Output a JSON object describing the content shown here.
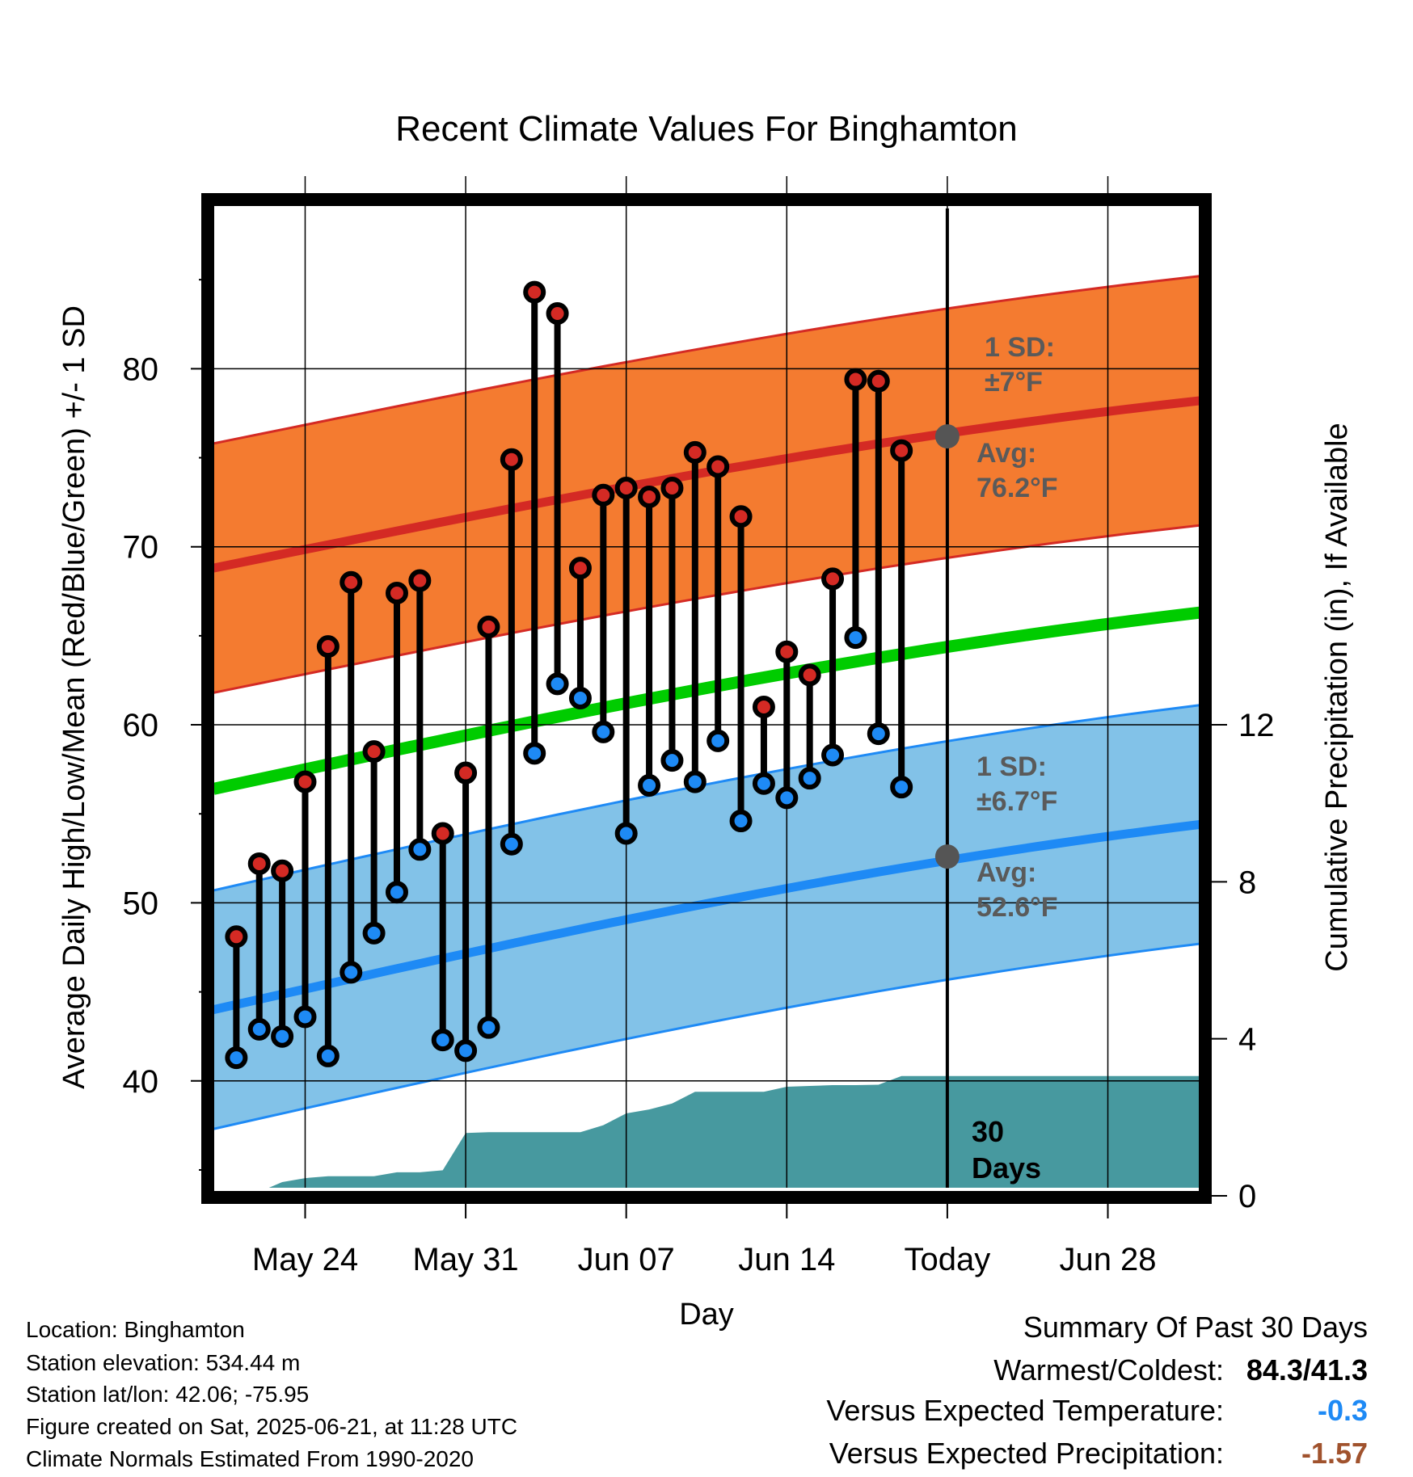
{
  "chart_data": {
    "type": "line",
    "title": "Recent Climate Values For Binghamton",
    "xlabel": "Day",
    "ylabel": "Average Daily High/Low/Mean (Red/Blue/Green) +/- 1 SD",
    "y2label": "Cumulative Precipitation (in), If Available",
    "x_range": [
      "2025-05-20",
      "2025-07-02"
    ],
    "ylim": [
      34,
      89
    ],
    "y2lim": [
      0,
      12
    ],
    "y_ticks": [
      40,
      50,
      60,
      70,
      80
    ],
    "y2_ticks": [
      0,
      4,
      8,
      12
    ],
    "x_ticks": [
      {
        "date": "2025-05-24",
        "label": "May 24"
      },
      {
        "date": "2025-05-31",
        "label": "May 31"
      },
      {
        "date": "2025-06-07",
        "label": "Jun 07"
      },
      {
        "date": "2025-06-14",
        "label": "Jun 14"
      },
      {
        "date": "2025-06-21",
        "label": "Today"
      },
      {
        "date": "2025-06-28",
        "label": "Jun 28"
      }
    ],
    "today": "2025-06-21",
    "normal_high": {
      "start": "2025-05-20",
      "end": "2025-07-02",
      "mean": [
        68.8,
        78.2
      ],
      "sd": 7.0
    },
    "normal_low": {
      "start": "2025-05-20",
      "end": "2025-07-02",
      "mean": [
        44.0,
        54.4
      ],
      "sd": 6.7
    },
    "normal_mean": {
      "start": "2025-05-20",
      "end": "2025-07-02",
      "values": [
        56.4,
        66.3
      ]
    },
    "daily_high_low": {
      "start": "2025-05-21",
      "high": [
        48.1,
        52.2,
        51.8,
        56.8,
        64.4,
        68.0,
        58.5,
        67.4,
        68.1,
        53.9,
        57.3,
        65.5,
        74.9,
        84.3,
        83.1,
        68.8,
        72.9,
        73.3,
        72.8,
        73.3,
        75.3,
        74.5,
        71.7,
        61.0,
        64.1,
        62.8,
        68.2,
        79.4,
        79.3,
        75.4
      ],
      "low": [
        41.3,
        42.9,
        42.5,
        43.6,
        41.4,
        46.1,
        48.3,
        50.6,
        53.0,
        42.3,
        41.7,
        43.0,
        53.3,
        58.4,
        62.3,
        61.5,
        59.6,
        53.9,
        56.6,
        58.0,
        56.8,
        59.1,
        54.6,
        56.7,
        55.9,
        57.0,
        58.3,
        64.9,
        59.5,
        56.5
      ]
    },
    "precipitation": {
      "dates": [
        "2025-05-21",
        "2025-05-22",
        "2025-05-23",
        "2025-05-24",
        "2025-05-25",
        "2025-05-26",
        "2025-05-27",
        "2025-05-28",
        "2025-05-29",
        "2025-05-30",
        "2025-05-31",
        "2025-06-01",
        "2025-06-02",
        "2025-06-03",
        "2025-06-04",
        "2025-06-05",
        "2025-06-06",
        "2025-06-07",
        "2025-06-08",
        "2025-06-09",
        "2025-06-10",
        "2025-06-11",
        "2025-06-12",
        "2025-06-13",
        "2025-06-14",
        "2025-06-15",
        "2025-06-16",
        "2025-06-17",
        "2025-06-18",
        "2025-06-19",
        "2025-07-02"
      ],
      "cumulative": [
        0.0,
        0.1,
        0.35,
        0.45,
        0.5,
        0.5,
        0.5,
        0.6,
        0.6,
        0.65,
        1.6,
        1.62,
        1.62,
        1.62,
        1.62,
        1.62,
        1.8,
        2.1,
        2.2,
        2.35,
        2.65,
        2.65,
        2.65,
        2.65,
        2.78,
        2.8,
        2.82,
        2.82,
        2.83,
        3.05,
        3.05
      ]
    },
    "annotations": {
      "high_sd": {
        "label": "1 SD:",
        "value": "±7°F"
      },
      "high_avg": {
        "label": "Avg:",
        "value": "76.2°F",
        "value_f": 76.2
      },
      "low_sd": {
        "label": "1 SD:",
        "value": "±6.7°F"
      },
      "low_avg": {
        "label": "Avg:",
        "value": "52.6°F",
        "value_f": 52.6
      },
      "period": {
        "line1": "30",
        "line2": "Days"
      }
    },
    "colors": {
      "high_band": "#f47b30",
      "high_line": "#d42a24",
      "low_band": "#82c2e8",
      "low_line": "#1e8af5",
      "mean_line": "#00cc00",
      "precip": "#47999f",
      "high_dot": "#d42a24",
      "low_dot": "#1e8af5",
      "annotation": "#5a5a5a"
    }
  },
  "info": {
    "location": "Location: Binghamton",
    "elevation": "Station elevation: 534.44 m",
    "latlon": "Station lat/lon: 42.06; -75.95",
    "created": "Figure created on Sat, 2025-06-21, at 11:28 UTC",
    "normals": "Climate Normals Estimated From 1990-2020"
  },
  "summary": {
    "title": "Summary Of Past 30 Days",
    "warm_cold_label": "Warmest/Coldest:",
    "warm_cold_value": "84.3/41.3",
    "temp_label": "Versus Expected Temperature:",
    "temp_value": "-0.3",
    "temp_color": "#1e8af5",
    "precip_label": "Versus Expected Precipitation:",
    "precip_value": "-1.57",
    "precip_color": "#a0522d"
  }
}
